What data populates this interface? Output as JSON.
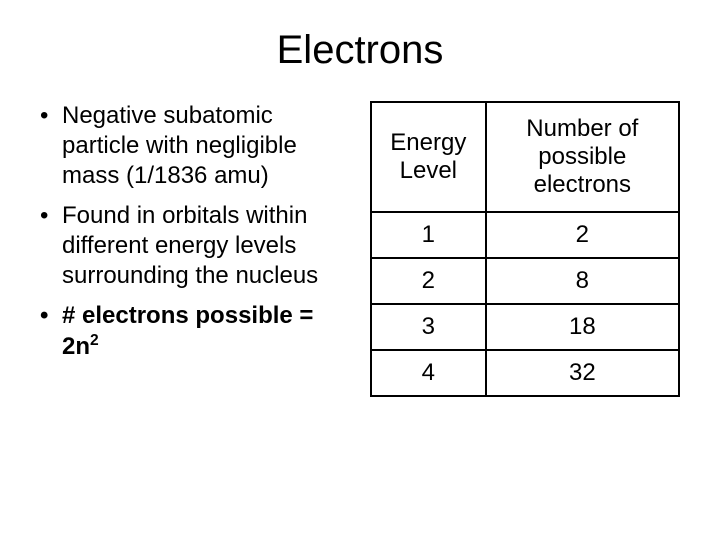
{
  "title": "Electrons",
  "bullets": [
    {
      "text": "Negative subatomic particle with negligible mass (1/1836 amu)",
      "bold": false
    },
    {
      "text": "Found in orbitals within different energy levels surrounding the nucleus",
      "bold": false
    }
  ],
  "formula_bullet_prefix": "# electrons possible = 2n",
  "formula_bullet_exponent": "2",
  "table": {
    "columns": [
      "Energy Level",
      "Number of possible electrons"
    ],
    "rows": [
      [
        "1",
        "2"
      ],
      [
        "2",
        "8"
      ],
      [
        "3",
        "18"
      ],
      [
        "4",
        "32"
      ]
    ],
    "border_color": "#000000",
    "header_fontsize": 24,
    "cell_fontsize": 24
  },
  "background_color": "#ffffff",
  "text_color": "#000000"
}
